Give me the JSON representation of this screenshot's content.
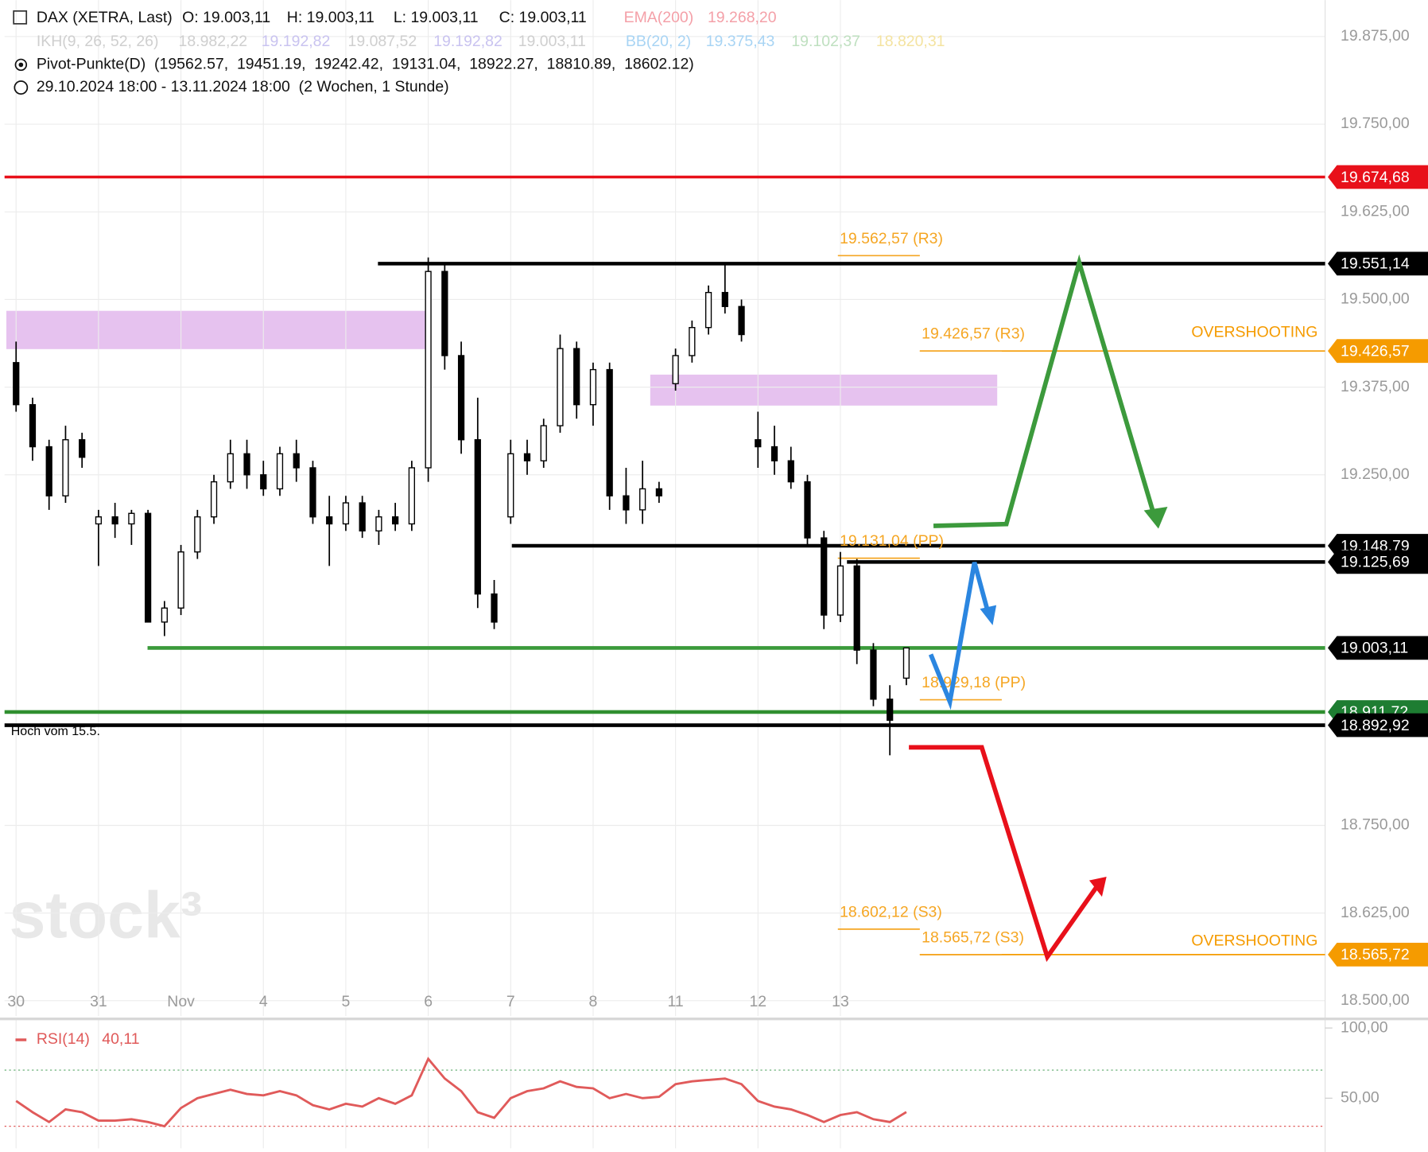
{
  "header": {
    "instrument": "DAX (XETRA, Last)",
    "open": "O: 19.003,11",
    "high": "H: 19.003,11",
    "low": "L: 19.003,11",
    "close": "C: 19.003,11",
    "ema_name": "EMA(200)",
    "ema_value": "19.268,20",
    "ikh_name": "IKH(9, 26, 52, 26)",
    "ikh_values": [
      "18.982,22",
      "19.192,82",
      "19.087,52",
      "19.192,82",
      "19.003,11"
    ],
    "bb_name": "BB(20, 2)",
    "bb_values": [
      "19.375,43",
      "19.102,37",
      "18.820,31"
    ],
    "pivot_line": "Pivot-Punkte(D)  (19562.57,  19451.19,  19242.42,  19131.04,  18922.27,  18810.89,  18602.12)",
    "range": "29.10.2024 18:00 - 13.11.2024 18:00  (2 Wochen, 1 Stunde)",
    "note": "Hoch vom 15.5.",
    "watermark": "stock³"
  },
  "chart_data": {
    "type": "candlestick",
    "up_color": "#ffffff",
    "down_color": "#000000",
    "grid": true,
    "x": [
      0,
      0.2,
      0.4,
      0.6,
      0.8,
      1,
      1.2,
      1.4,
      1.6,
      1.8,
      2,
      2.2,
      2.4,
      2.6,
      2.8,
      3,
      3.2,
      3.4,
      3.6,
      3.8,
      4,
      4.2,
      4.4,
      4.6,
      4.8,
      5,
      5.2,
      5.4,
      5.6,
      5.8,
      6,
      6.2,
      6.4,
      6.6,
      6.8,
      7,
      7.2,
      7.4,
      7.6,
      7.8,
      8,
      8.2,
      8.4,
      8.6,
      8.8,
      9,
      9.2,
      9.4,
      9.6,
      9.8,
      10,
      10.2,
      10.4,
      10.6,
      10.8
    ],
    "open": [
      19410,
      19350,
      19290,
      19220,
      19300,
      19180,
      19190,
      19180,
      19195,
      19040,
      19060,
      19140,
      19190,
      19240,
      19280,
      19250,
      19230,
      19280,
      19260,
      19190,
      19180,
      19210,
      19170,
      19190,
      19180,
      19260,
      19540,
      19420,
      19300,
      19080,
      19190,
      19280,
      19270,
      19320,
      19430,
      19350,
      19400,
      19220,
      19200,
      19230,
      19380,
      19420,
      19460,
      19510,
      19490,
      19300,
      19290,
      19270,
      19240,
      19160,
      19050,
      19120,
      19000,
      18930,
      18960
    ],
    "high": [
      19440,
      19360,
      19300,
      19320,
      19310,
      19200,
      19210,
      19200,
      19200,
      19070,
      19150,
      19200,
      19250,
      19300,
      19300,
      19270,
      19290,
      19300,
      19270,
      19220,
      19220,
      19220,
      19200,
      19210,
      19270,
      19560,
      19550,
      19440,
      19360,
      19100,
      19300,
      19300,
      19330,
      19450,
      19440,
      19410,
      19410,
      19260,
      19270,
      19240,
      19430,
      19470,
      19520,
      19550,
      19500,
      19340,
      19320,
      19290,
      19250,
      19170,
      19140,
      19130,
      19010,
      18950,
      19000
    ],
    "low": [
      19340,
      19270,
      19200,
      19210,
      19260,
      19120,
      19160,
      19150,
      19040,
      19020,
      19050,
      19130,
      19180,
      19230,
      19230,
      19220,
      19220,
      19240,
      19180,
      19120,
      19170,
      19160,
      19150,
      19170,
      19170,
      19240,
      19400,
      19280,
      19060,
      19030,
      19180,
      19250,
      19260,
      19310,
      19330,
      19320,
      19200,
      19180,
      19180,
      19210,
      19370,
      19410,
      19450,
      19480,
      19440,
      19260,
      19250,
      19230,
      19150,
      19030,
      19040,
      18980,
      18920,
      18850,
      18950
    ],
    "close": [
      19350,
      19290,
      19220,
      19300,
      19275,
      19190,
      19180,
      19195,
      19040,
      19060,
      19140,
      19190,
      19240,
      19280,
      19250,
      19230,
      19280,
      19260,
      19190,
      19180,
      19210,
      19170,
      19190,
      19180,
      19260,
      19540,
      19420,
      19300,
      19080,
      19040,
      19280,
      19270,
      19320,
      19430,
      19350,
      19400,
      19220,
      19200,
      19230,
      19220,
      19420,
      19460,
      19510,
      19490,
      19450,
      19290,
      19270,
      19240,
      19160,
      19050,
      19120,
      19000,
      18930,
      18900,
      19003.11
    ],
    "xlim": [
      -0.14,
      15.88
    ],
    "xticks": [
      {
        "value": 0,
        "label": "30"
      },
      {
        "value": 1,
        "label": "31"
      },
      {
        "value": 2,
        "label": "Nov"
      },
      {
        "value": 3,
        "label": "4"
      },
      {
        "value": 4,
        "label": "5"
      },
      {
        "value": 5,
        "label": "6"
      },
      {
        "value": 6,
        "label": "7"
      },
      {
        "value": 7,
        "label": "8"
      },
      {
        "value": 8,
        "label": "11"
      },
      {
        "value": 9,
        "label": "12"
      },
      {
        "value": 10,
        "label": "13"
      }
    ],
    "ylim": [
      18478,
      19927
    ],
    "yticks": [
      {
        "value": 19875,
        "label": "19.875,00"
      },
      {
        "value": 19750,
        "label": "19.750,00"
      },
      {
        "value": 19625,
        "label": "19.625,00"
      },
      {
        "value": 19500,
        "label": "19.500,00"
      },
      {
        "value": 19375,
        "label": "19.375,00"
      },
      {
        "value": 19250,
        "label": "19.250,00"
      },
      {
        "value": 18750,
        "label": "18.750,00"
      },
      {
        "value": 18625,
        "label": "18.625,00"
      },
      {
        "value": 18500,
        "label": "18.500,00"
      }
    ],
    "levels": [
      {
        "value": 19674.68,
        "label": "19.674,68",
        "color": "#e8101a"
      },
      {
        "value": 19551.14,
        "label": "19.551,14",
        "color": "#000000"
      },
      {
        "value": 19426.57,
        "label": "19.426,57",
        "color": "#f59b00"
      },
      {
        "value": 19148.79,
        "label": "19.148,79",
        "color": "#000000"
      },
      {
        "value": 19125.69,
        "label": "19.125,69",
        "color": "#000000"
      },
      {
        "value": 19003.11,
        "label": "19.003,11",
        "color": "#000000"
      },
      {
        "value": 18911.72,
        "label": "18.911,72",
        "color": "#1e7d32"
      },
      {
        "value": 18892.92,
        "label": "18.892,92",
        "color": "#000000"
      },
      {
        "value": 18565.72,
        "label": "18.565,72",
        "color": "#f59b00"
      }
    ],
    "pivots": [
      {
        "value": 19562.57,
        "label": "19.562,57 (R3)"
      },
      {
        "value": 19426.57,
        "label": "19.426,57 (R3)"
      },
      {
        "value": 19131.04,
        "label": "19.131,04 (PP)"
      },
      {
        "value": 18929.18,
        "label": "18.929,18 (PP)"
      },
      {
        "value": 18602.12,
        "label": "18.602,12 (S3)"
      },
      {
        "value": 18565.72,
        "label": "18.565,72 (S3)"
      }
    ],
    "annotations": [
      "OVERSHOOTING",
      "OVERSHOOTING"
    ],
    "rsi": {
      "name": "RSI(14)",
      "value_label": "40,11",
      "color": "#e05a5a",
      "values": [
        48,
        40,
        33,
        42,
        40,
        34,
        34,
        35,
        33,
        30,
        43,
        50,
        53,
        56,
        53,
        52,
        55,
        52,
        45,
        42,
        46,
        44,
        50,
        46,
        52,
        78,
        64,
        55,
        40,
        36,
        50,
        55,
        57,
        62,
        58,
        57,
        50,
        53,
        50,
        51,
        60,
        62,
        63,
        64,
        60,
        48,
        44,
        42,
        38,
        33,
        38,
        40,
        35,
        33,
        40.11
      ],
      "ylim": [
        14.3,
        106.5
      ],
      "yticks": [
        {
          "value": 100,
          "label": "100,00"
        },
        {
          "value": 50,
          "label": "50,00"
        }
      ],
      "bands": [
        70,
        30
      ]
    }
  }
}
